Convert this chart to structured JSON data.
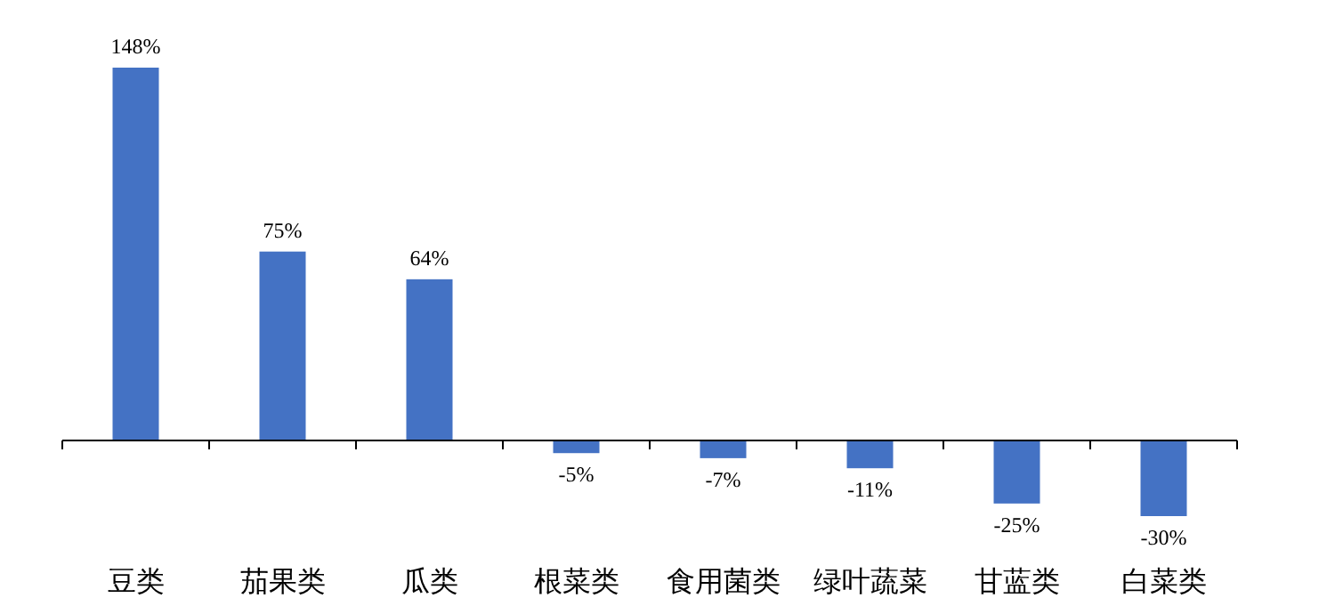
{
  "chart_data": {
    "type": "bar",
    "categories": [
      "豆类",
      "茄果类",
      "瓜类",
      "根菜类",
      "食用菌类",
      "绿叶蔬菜",
      "甘蓝类",
      "白菜类"
    ],
    "values": [
      148,
      75,
      64,
      -5,
      -7,
      -11,
      -25,
      -30
    ],
    "value_labels": [
      "148%",
      "75%",
      "64%",
      "-5%",
      "-7%",
      "-11%",
      "-25%",
      "-30%"
    ],
    "color": "#4472c4"
  }
}
